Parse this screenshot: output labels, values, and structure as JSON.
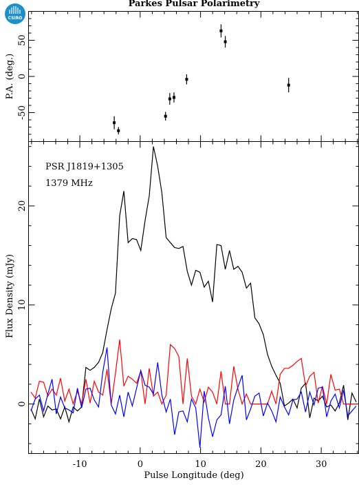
{
  "title": "Parkes Pulsar Polarimetry",
  "logo_text": "CSIRO",
  "chart_data": [
    {
      "type": "scatter",
      "panel": "position-angle",
      "ylabel": "P.A. (deg.)",
      "xlim": [
        -18.5,
        36.2
      ],
      "ylim": [
        -90,
        90
      ],
      "yticks": [
        -50,
        0,
        50
      ],
      "points": [
        {
          "x": -4.3,
          "y": -64,
          "err": 9
        },
        {
          "x": -3.6,
          "y": -75,
          "err": 5
        },
        {
          "x": 4.2,
          "y": -55,
          "err": 6
        },
        {
          "x": 4.9,
          "y": -31,
          "err": 8
        },
        {
          "x": 5.6,
          "y": -29,
          "err": 7
        },
        {
          "x": 7.7,
          "y": -4,
          "err": 7
        },
        {
          "x": 13.4,
          "y": 63,
          "err": 9
        },
        {
          "x": 14.1,
          "y": 48,
          "err": 8
        },
        {
          "x": 24.6,
          "y": -12,
          "err": 10
        }
      ]
    },
    {
      "type": "line",
      "panel": "flux-density",
      "xlabel": "Pulse Longitude (deg)",
      "ylabel": "Flux Density (mJy)",
      "xlim": [
        -18.5,
        36.2
      ],
      "ylim": [
        -5,
        26.5
      ],
      "xticks": [
        -10,
        0,
        10,
        20,
        30
      ],
      "yticks": [
        0,
        10,
        20
      ],
      "annotations": [
        "PSR J1819+1305",
        "1379 MHz"
      ],
      "x": [
        -18.1,
        -17.4,
        -16.7,
        -16.0,
        -15.3,
        -14.6,
        -13.9,
        -13.2,
        -12.5,
        -11.8,
        -11.1,
        -10.4,
        -9.7,
        -9.0,
        -8.3,
        -7.6,
        -6.9,
        -6.2,
        -5.5,
        -4.8,
        -4.1,
        -3.4,
        -2.7,
        -2.0,
        -1.3,
        -0.6,
        0.1,
        0.8,
        1.5,
        2.2,
        2.9,
        3.6,
        4.3,
        5.0,
        5.7,
        6.4,
        7.1,
        7.8,
        8.5,
        9.2,
        9.9,
        10.6,
        11.3,
        12.0,
        12.7,
        13.4,
        14.1,
        14.8,
        15.5,
        16.2,
        16.9,
        17.6,
        18.3,
        19.0,
        19.7,
        20.4,
        21.1,
        21.8,
        22.5,
        23.2,
        23.9,
        24.6,
        25.3,
        26.0,
        26.7,
        27.4,
        28.1,
        28.8,
        29.5,
        30.2,
        30.9,
        31.6,
        32.3,
        33.0,
        33.7,
        34.4,
        35.1,
        35.8
      ],
      "series": [
        {
          "color": "#000000",
          "values": [
            -0.5,
            -1.5,
            0.5,
            -1.3,
            -0.2,
            -0.6,
            -0.5,
            -1.5,
            -0.3,
            -1.8,
            -0.3,
            -0.7,
            -0.3,
            3.7,
            3.4,
            3.7,
            4.2,
            5.2,
            7.5,
            9.6,
            11.2,
            19.0,
            21.5,
            16.3,
            16.7,
            16.6,
            15.5,
            18.5,
            21.0,
            26.0,
            24.0,
            21.3,
            16.8,
            16.3,
            15.8,
            15.7,
            15.9,
            13.4,
            12.0,
            13.5,
            13.3,
            11.8,
            12.4,
            10.3,
            16.1,
            16.0,
            13.6,
            15.5,
            13.6,
            13.9,
            13.3,
            11.7,
            12.2,
            8.7,
            8.1,
            7.0,
            5.0,
            3.8,
            2.9,
            2.1,
            -0.2,
            0.1,
            0.5,
            -0.4,
            1.6,
            2.1,
            -1.4,
            0.6,
            0.3,
            0.8,
            -0.3,
            -0.1,
            -0.7,
            0.1,
            1.9,
            -1.6,
            1.1,
            0.2
          ]
        },
        {
          "color": "#ff0000",
          "values": [
            1.2,
            0.6,
            2.3,
            2.2,
            0.8,
            1.5,
            0.9,
            2.6,
            0.3,
            1.5,
            0.0,
            1.3,
            0.0,
            2.5,
            0.1,
            2.3,
            1.2,
            0.9,
            3.5,
            0.0,
            3.1,
            6.5,
            1.8,
            2.8,
            2.5,
            2.1,
            3.3,
            0.0,
            3.6,
            0.8,
            1.2,
            0.0,
            0.9,
            6.0,
            5.6,
            4.8,
            0.0,
            4.6,
            0.8,
            0.0,
            1.5,
            0.2,
            1.7,
            1.2,
            0.0,
            3.3,
            0.0,
            0.0,
            3.8,
            1.5,
            0.0,
            1.0,
            0.0,
            0.0,
            0.0,
            0.0,
            0.0,
            1.3,
            0.0,
            3.0,
            3.6,
            3.6,
            3.9,
            4.3,
            4.6,
            1.8,
            2.8,
            3.2,
            0.1,
            1.8,
            0.0,
            3.0,
            1.4,
            1.5,
            0.0,
            0.0,
            0.0,
            0.0
          ]
        },
        {
          "color": "#0000ff",
          "values": [
            -0.7,
            0.5,
            0.9,
            -0.7,
            1.0,
            2.5,
            -1.0,
            0.7,
            -0.4,
            -0.6,
            -0.9,
            1.6,
            -0.4,
            1.5,
            1.6,
            0.4,
            -0.3,
            3.2,
            5.7,
            -0.1,
            -1.0,
            0.9,
            -1.3,
            1.2,
            -0.2,
            1.6,
            3.4,
            1.9,
            1.7,
            1.0,
            4.2,
            0.9,
            -0.8,
            0.5,
            -3.1,
            -0.8,
            -0.7,
            -1.8,
            0.5,
            -0.4,
            -4.4,
            1.3,
            -1.4,
            -3.3,
            -1.6,
            -1.1,
            1.8,
            -2.0,
            0.4,
            1.7,
            2.9,
            -1.6,
            -0.5,
            0.8,
            1.1,
            -1.2,
            0.1,
            -0.7,
            -1.8,
            0.7,
            -0.3,
            -1.1,
            0.4,
            0.5,
            1.2,
            -0.8,
            1.2,
            -0.1,
            1.6,
            1.7,
            -1.3,
            0.3,
            1.0,
            -0.4,
            1.4,
            -1.2,
            -0.7,
            -0.2
          ]
        }
      ]
    }
  ]
}
